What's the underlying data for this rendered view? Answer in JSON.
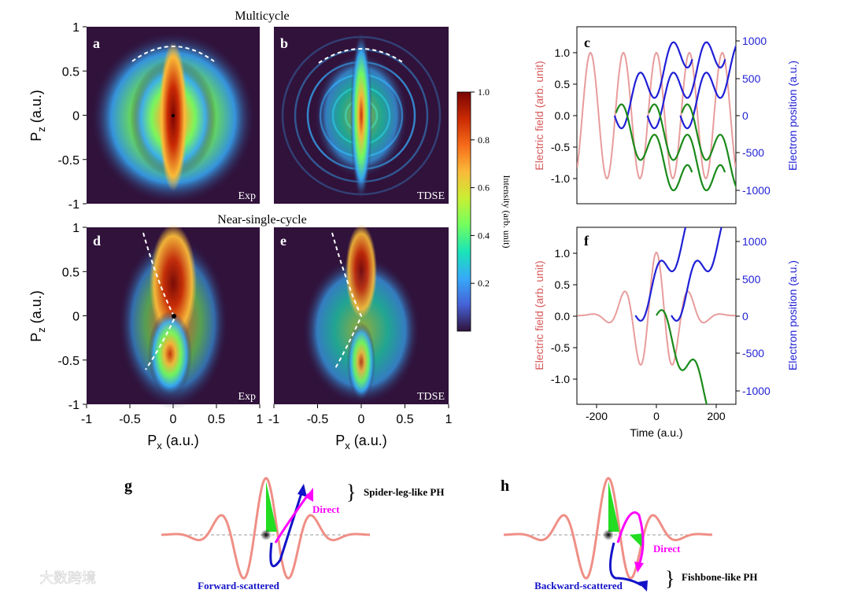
{
  "titles": {
    "top": "Multicycle",
    "mid": "Near-single-cycle"
  },
  "panels": {
    "a": {
      "letter": "a",
      "tag": "Exp"
    },
    "b": {
      "letter": "b",
      "tag": "TDSE"
    },
    "c": {
      "letter": "c"
    },
    "d": {
      "letter": "d",
      "tag": "Exp"
    },
    "e": {
      "letter": "e",
      "tag": "TDSE"
    },
    "f": {
      "letter": "f"
    },
    "g": {
      "letter": "g"
    },
    "h": {
      "letter": "h"
    }
  },
  "axes": {
    "pz_label": "P",
    "pz_sub": "z",
    "px_label": "P",
    "px_sub": "x",
    "unit": "(a.u.)",
    "pz_ticks": [
      "1",
      "0.5",
      "0",
      "-0.5",
      "-1"
    ],
    "px_ticks": [
      "-1",
      "-0.5",
      "0",
      "0.5",
      "1"
    ]
  },
  "colorbar": {
    "label": "Intensity (arb. unit)",
    "ticks": [
      "1.0",
      "0.8",
      "0.6",
      "0.4",
      "0.2"
    ],
    "colormap": [
      "#30123b",
      "#4662d7",
      "#36aaf9",
      "#1ae4b6",
      "#72fe5e",
      "#c8ef34",
      "#faba39",
      "#f66b19",
      "#ca2a04",
      "#7a0403"
    ]
  },
  "trajectory_plots": {
    "left_label": "Electric field (arb. unit)",
    "right_label": "Electron position (a.u.)",
    "left_ticks": [
      "1.0",
      "0.5",
      "0.0",
      "-0.5",
      "-1.0"
    ],
    "right_ticks": [
      "1000",
      "500",
      "0",
      "-500",
      "-1000"
    ],
    "x_ticks": [
      "-200",
      "0",
      "200"
    ],
    "x_label": "Time (a.u.)",
    "colors": {
      "field": "#e89c9c",
      "positive": "#1f1fd6",
      "negative": "#1a8a1a"
    }
  },
  "schematic": {
    "g": {
      "top_label": "Spider-leg-like PH",
      "direct": "Direct",
      "bottom_label": "Forward-scattered"
    },
    "h": {
      "direct": "Direct",
      "bottom_label": "Backward-scattered",
      "side_label": "Fishbone-like PH"
    },
    "colors": {
      "wave": "#ef8f86",
      "direct": "#ff00ff",
      "scattered": "#1212c8",
      "patch": "#22dd22"
    }
  },
  "watermark": "大数跨境"
}
